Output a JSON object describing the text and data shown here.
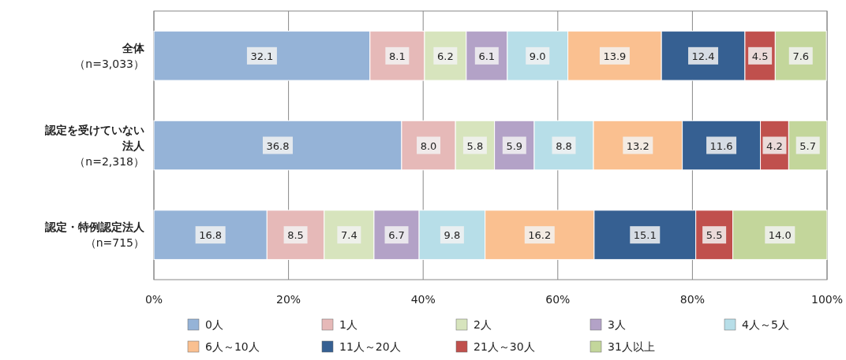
{
  "chart_data": {
    "type": "bar",
    "orientation": "horizontal",
    "stacked": true,
    "grid": "x",
    "legend": "bottom",
    "categories": [
      "全体（n=3,033）",
      "認定を受けていない法人（n=2,318）",
      "認定・特例認定法人（n=715）"
    ],
    "xlim": [
      0,
      100
    ],
    "xticks": [
      {
        "value": 0,
        "label": "0%"
      },
      {
        "value": 20,
        "label": "20%"
      },
      {
        "value": 40,
        "label": "40%"
      },
      {
        "value": 60,
        "label": "60%"
      },
      {
        "value": 80,
        "label": "80%"
      },
      {
        "value": 100,
        "label": "100%"
      }
    ],
    "series": [
      {
        "name": "0人",
        "color": "#95b3d7",
        "values": [
          32.1,
          36.8,
          16.8
        ],
        "value_labels": [
          "32.1",
          "36.8",
          "16.8"
        ]
      },
      {
        "name": "1人",
        "color": "#e6b9b8",
        "values": [
          8.1,
          8.0,
          8.5
        ],
        "value_labels": [
          "8.1",
          "8.0",
          "8.5"
        ]
      },
      {
        "name": "2人",
        "color": "#d7e4bd",
        "values": [
          6.2,
          5.8,
          7.4
        ],
        "value_labels": [
          "6.2",
          "5.8",
          "7.4"
        ]
      },
      {
        "name": "3人",
        "color": "#b3a2c7",
        "values": [
          6.1,
          5.9,
          6.7
        ],
        "value_labels": [
          "6.1",
          "5.9",
          "6.7"
        ]
      },
      {
        "name": "4人～5人",
        "color": "#b7dee8",
        "values": [
          9.0,
          8.8,
          9.8
        ],
        "value_labels": [
          "9.0",
          "8.8",
          "9.8"
        ]
      },
      {
        "name": "6人～10人",
        "color": "#fac090",
        "values": [
          13.9,
          13.2,
          16.2
        ],
        "value_labels": [
          "13.9",
          "13.2",
          "16.2"
        ]
      },
      {
        "name": "11人～20人",
        "color": "#366092",
        "values": [
          12.4,
          11.6,
          15.1
        ],
        "value_labels": [
          "12.4",
          "11.6",
          "15.1"
        ]
      },
      {
        "name": "21人～30人",
        "color": "#c0504d",
        "values": [
          4.5,
          4.2,
          5.5
        ],
        "value_labels": [
          "4.5",
          "4.2",
          "5.5"
        ]
      },
      {
        "name": "31人以上",
        "color": "#c3d69b",
        "values": [
          7.6,
          5.7,
          14.0
        ],
        "value_labels": [
          "7.6",
          "5.7",
          "14.0"
        ]
      }
    ]
  }
}
